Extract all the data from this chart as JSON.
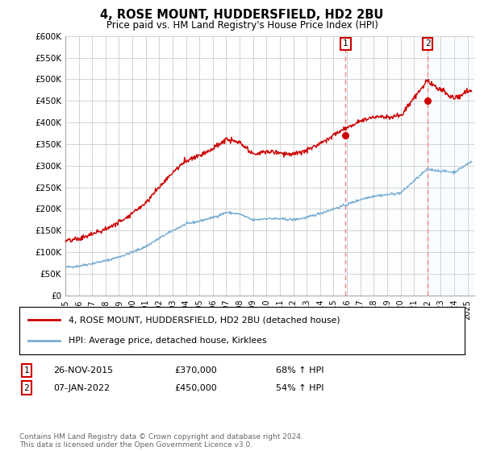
{
  "title": "4, ROSE MOUNT, HUDDERSFIELD, HD2 2BU",
  "subtitle": "Price paid vs. HM Land Registry's House Price Index (HPI)",
  "ylabel_ticks": [
    "£0",
    "£50K",
    "£100K",
    "£150K",
    "£200K",
    "£250K",
    "£300K",
    "£350K",
    "£400K",
    "£450K",
    "£500K",
    "£550K",
    "£600K"
  ],
  "ytick_values": [
    0,
    50000,
    100000,
    150000,
    200000,
    250000,
    300000,
    350000,
    400000,
    450000,
    500000,
    550000,
    600000
  ],
  "hpi_color": "#7bafd4",
  "price_color": "#cc0000",
  "vline_color": "#ff8080",
  "background_color": "#ffffff",
  "grid_color": "#cccccc",
  "legend_label_price": "4, ROSE MOUNT, HUDDERSFIELD, HD2 2BU (detached house)",
  "legend_label_hpi": "HPI: Average price, detached house, Kirklees",
  "annotation1_label": "1",
  "annotation1_date": "26-NOV-2015",
  "annotation1_price": "£370,000",
  "annotation1_pct": "68% ↑ HPI",
  "annotation2_label": "2",
  "annotation2_date": "07-JAN-2022",
  "annotation2_price": "£450,000",
  "annotation2_pct": "54% ↑ HPI",
  "footnote": "Contains HM Land Registry data © Crown copyright and database right 2024.\nThis data is licensed under the Open Government Licence v3.0.",
  "sale1_year": 2015.9,
  "sale1_value": 370000,
  "sale2_year": 2022.03,
  "sale2_value": 450000,
  "xmin": 1995,
  "xmax": 2025.5,
  "ymin": 0,
  "ymax": 600000,
  "shaded_color": "#ddeeff"
}
